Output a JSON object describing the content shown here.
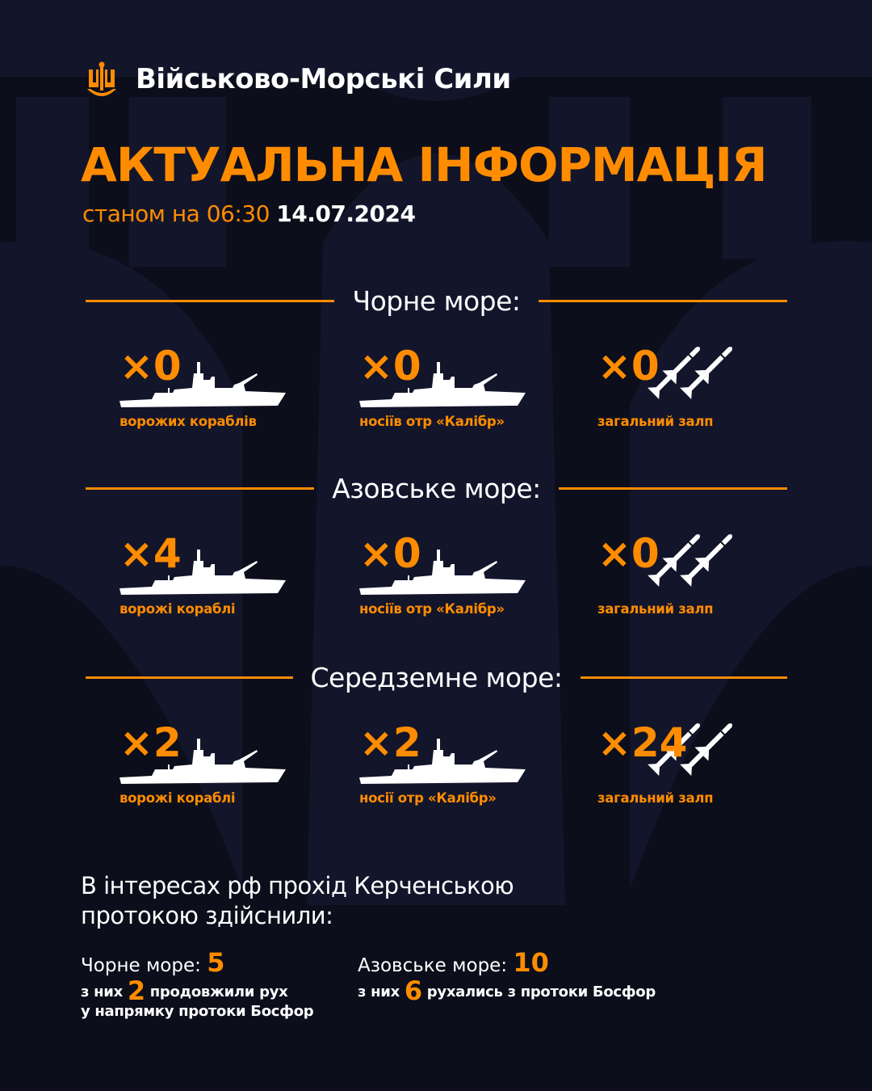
{
  "header": {
    "brand": "Військово-Морські Сили",
    "logo": "navy-trident-anchor-logo",
    "title": "АКТУАЛЬНА ІНФОРМАЦІЯ",
    "as_of_label": "станом на 06:30",
    "date": "14.07.2024"
  },
  "colors": {
    "accent": "#ff8c00",
    "background": "#0c0e1b",
    "text": "#ffffff"
  },
  "seas": [
    {
      "name": "Чорне море:",
      "items": [
        {
          "count": "×0",
          "label": "ворожих кораблів",
          "icon": "warship-icon"
        },
        {
          "count": "×0",
          "label": "носіїв отр «Калібр»",
          "icon": "warship-icon"
        },
        {
          "count": "×0",
          "label": "загальний залп",
          "icon": "missiles-icon"
        }
      ]
    },
    {
      "name": "Азовське море:",
      "items": [
        {
          "count": "×4",
          "label": "ворожі кораблі",
          "icon": "warship-icon"
        },
        {
          "count": "×0",
          "label": "носіїв отр «Калібр»",
          "icon": "warship-icon"
        },
        {
          "count": "×0",
          "label": "загальний залп",
          "icon": "missiles-icon"
        }
      ]
    },
    {
      "name": "Середземне море:",
      "items": [
        {
          "count": "×2",
          "label": "ворожі кораблі",
          "icon": "warship-icon"
        },
        {
          "count": "×2",
          "label": "носії отр «Калібр»",
          "icon": "warship-icon"
        },
        {
          "count": "×24",
          "label": "загальний залп",
          "icon": "missiles-icon"
        }
      ]
    }
  ],
  "kerch": {
    "heading_line1": "В інтересах рф прохід Керченською",
    "heading_line2": "протокою здійснили:",
    "black": {
      "label": "Чорне море:",
      "value": "5",
      "pre": "з них",
      "count": "2",
      "post": "продовжили рух",
      "line2": "у напрямку протоки Босфор"
    },
    "azov": {
      "label": "Азовське море:",
      "value": "10",
      "pre": "з них",
      "count": "6",
      "post": "рухались з протоки Босфор"
    }
  }
}
